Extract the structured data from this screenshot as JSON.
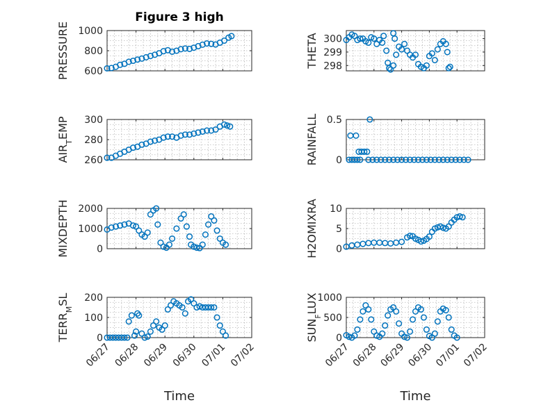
{
  "figure": {
    "title": "Figure 3 high",
    "xlabel": "Time",
    "x_tick_labels": [
      "06/27",
      "06/28",
      "06/29",
      "06/30",
      "07/01",
      "07/02"
    ],
    "series_color": "#0072BD"
  },
  "chart_data": [
    {
      "type": "scatter",
      "title": "Figure 3 high",
      "ylabel": "PRESSURE",
      "xlim": [
        0,
        5
      ],
      "ylim": [
        600,
        1000
      ],
      "yticks": [
        600,
        800,
        1000
      ],
      "grid": true,
      "legend": "none",
      "points_key": "pressure"
    },
    {
      "type": "scatter",
      "ylabel": "THETA",
      "xlim": [
        0,
        5
      ],
      "ylim": [
        297.6,
        300.6
      ],
      "yticks": [
        298,
        299,
        300
      ],
      "grid": true,
      "legend": "none",
      "points_key": "theta"
    },
    {
      "type": "scatter",
      "ylabel": "AIR_TEMP",
      "ylabel_display": {
        "main": "AIR",
        "sub": "T",
        "rest": "EMP"
      },
      "xlim": [
        0,
        5
      ],
      "ylim": [
        260,
        300
      ],
      "yticks": [
        260,
        280,
        300
      ],
      "grid": true,
      "legend": "none",
      "points_key": "air_temp"
    },
    {
      "type": "scatter",
      "ylabel": "RAINFALL",
      "xlim": [
        0,
        5
      ],
      "ylim": [
        0,
        0.5
      ],
      "yticks": [
        0,
        0.5
      ],
      "grid": true,
      "legend": "none",
      "points_key": "rainfall"
    },
    {
      "type": "scatter",
      "ylabel": "MIXDEPTH",
      "xlim": [
        0,
        5
      ],
      "ylim": [
        0,
        2000
      ],
      "yticks": [
        0,
        1000,
        2000
      ],
      "grid": true,
      "legend": "none",
      "points_key": "mixdepth"
    },
    {
      "type": "scatter",
      "ylabel": "H2OMIXRA",
      "xlim": [
        0,
        5
      ],
      "ylim": [
        0,
        10
      ],
      "yticks": [
        0,
        5,
        10
      ],
      "grid": true,
      "legend": "none",
      "points_key": "h2omixra"
    },
    {
      "type": "scatter",
      "ylabel": "TERR_MSL",
      "ylabel_display": {
        "main": "TERR",
        "sub": "M",
        "rest": "SL"
      },
      "xlim": [
        0,
        5
      ],
      "ylim": [
        0,
        200
      ],
      "yticks": [
        0,
        100,
        200
      ],
      "grid": true,
      "legend": "none",
      "points_key": "terr_msl"
    },
    {
      "type": "scatter",
      "ylabel": "SUN_FLUX",
      "ylabel_display": {
        "main": "SUN",
        "sub": "F",
        "rest": "LUX"
      },
      "xlim": [
        0,
        5
      ],
      "ylim": [
        0,
        1000
      ],
      "yticks": [
        0,
        500,
        1000
      ],
      "grid": true,
      "legend": "none",
      "points_key": "sun_flux"
    }
  ],
  "series_points": {
    "pressure": [
      [
        0.0,
        625
      ],
      [
        0.15,
        628
      ],
      [
        0.3,
        640
      ],
      [
        0.45,
        660
      ],
      [
        0.6,
        670
      ],
      [
        0.75,
        690
      ],
      [
        0.9,
        700
      ],
      [
        1.05,
        712
      ],
      [
        1.2,
        722
      ],
      [
        1.35,
        735
      ],
      [
        1.5,
        748
      ],
      [
        1.65,
        760
      ],
      [
        1.8,
        775
      ],
      [
        1.95,
        795
      ],
      [
        2.1,
        805
      ],
      [
        2.25,
        790
      ],
      [
        2.4,
        800
      ],
      [
        2.55,
        815
      ],
      [
        2.7,
        822
      ],
      [
        2.85,
        818
      ],
      [
        3.0,
        830
      ],
      [
        3.15,
        845
      ],
      [
        3.3,
        860
      ],
      [
        3.45,
        872
      ],
      [
        3.6,
        868
      ],
      [
        3.75,
        862
      ],
      [
        3.9,
        880
      ],
      [
        4.05,
        900
      ],
      [
        4.2,
        930
      ],
      [
        4.3,
        945
      ]
    ],
    "theta": [
      [
        0.0,
        299.9
      ],
      [
        0.1,
        300.1
      ],
      [
        0.2,
        300.3
      ],
      [
        0.3,
        300.2
      ],
      [
        0.4,
        299.9
      ],
      [
        0.5,
        300.0
      ],
      [
        0.6,
        300.0
      ],
      [
        0.7,
        299.8
      ],
      [
        0.8,
        299.7
      ],
      [
        0.9,
        300.1
      ],
      [
        1.0,
        300.0
      ],
      [
        1.1,
        299.6
      ],
      [
        1.2,
        299.9
      ],
      [
        1.3,
        299.7
      ],
      [
        1.35,
        300.2
      ],
      [
        1.45,
        299.1
      ],
      [
        1.5,
        298.2
      ],
      [
        1.55,
        297.8
      ],
      [
        1.6,
        297.7
      ],
      [
        1.7,
        298.0
      ],
      [
        1.8,
        298.8
      ],
      [
        1.9,
        299.4
      ],
      [
        2.0,
        299.2
      ],
      [
        2.1,
        299.6
      ],
      [
        2.2,
        299.1
      ],
      [
        2.3,
        298.8
      ],
      [
        2.4,
        298.6
      ],
      [
        2.5,
        298.8
      ],
      [
        2.6,
        298.1
      ],
      [
        2.7,
        297.9
      ],
      [
        2.8,
        297.8
      ],
      [
        2.9,
        298.0
      ],
      [
        3.0,
        298.7
      ],
      [
        3.1,
        298.9
      ],
      [
        3.2,
        298.4
      ],
      [
        3.3,
        299.2
      ],
      [
        3.4,
        299.6
      ],
      [
        3.5,
        299.8
      ],
      [
        3.6,
        299.6
      ],
      [
        3.65,
        299.0
      ],
      [
        3.7,
        297.8
      ],
      [
        3.75,
        297.9
      ],
      [
        1.7,
        300.4
      ],
      [
        1.75,
        300.0
      ]
    ],
    "air_temp": [
      [
        0.0,
        262
      ],
      [
        0.15,
        262
      ],
      [
        0.3,
        264
      ],
      [
        0.45,
        266
      ],
      [
        0.6,
        268
      ],
      [
        0.75,
        270
      ],
      [
        0.9,
        272
      ],
      [
        1.05,
        273
      ],
      [
        1.2,
        275
      ],
      [
        1.35,
        276
      ],
      [
        1.5,
        278
      ],
      [
        1.65,
        279
      ],
      [
        1.8,
        280
      ],
      [
        1.95,
        282
      ],
      [
        2.1,
        283
      ],
      [
        2.25,
        283
      ],
      [
        2.4,
        282
      ],
      [
        2.55,
        284
      ],
      [
        2.7,
        285
      ],
      [
        2.85,
        285
      ],
      [
        3.0,
        286
      ],
      [
        3.15,
        287
      ],
      [
        3.3,
        288
      ],
      [
        3.45,
        289
      ],
      [
        3.6,
        289
      ],
      [
        3.75,
        290
      ],
      [
        3.9,
        293
      ],
      [
        4.05,
        295
      ],
      [
        4.15,
        294
      ],
      [
        4.25,
        293
      ]
    ],
    "rainfall": [
      [
        0.1,
        0
      ],
      [
        0.2,
        0
      ],
      [
        0.3,
        0
      ],
      [
        0.4,
        0
      ],
      [
        0.5,
        0
      ],
      [
        0.15,
        0.3
      ],
      [
        0.35,
        0.3
      ],
      [
        0.45,
        0.1
      ],
      [
        0.55,
        0.1
      ],
      [
        0.65,
        0.1
      ],
      [
        0.75,
        0.1
      ],
      [
        0.8,
        0
      ],
      [
        0.85,
        0.5
      ],
      [
        0.95,
        0
      ],
      [
        1.1,
        0
      ],
      [
        1.25,
        0
      ],
      [
        1.4,
        0
      ],
      [
        1.55,
        0
      ],
      [
        1.7,
        0
      ],
      [
        1.85,
        0
      ],
      [
        2.0,
        0
      ],
      [
        2.15,
        0
      ],
      [
        2.3,
        0
      ],
      [
        2.45,
        0
      ],
      [
        2.6,
        0
      ],
      [
        2.75,
        0
      ],
      [
        2.9,
        0
      ],
      [
        3.05,
        0
      ],
      [
        3.2,
        0
      ],
      [
        3.35,
        0
      ],
      [
        3.5,
        0
      ],
      [
        3.65,
        0
      ],
      [
        3.8,
        0
      ],
      [
        3.95,
        0
      ],
      [
        4.1,
        0
      ],
      [
        4.25,
        0
      ],
      [
        4.4,
        0
      ]
    ],
    "mixdepth": [
      [
        0.0,
        950
      ],
      [
        0.15,
        1050
      ],
      [
        0.3,
        1100
      ],
      [
        0.45,
        1150
      ],
      [
        0.6,
        1200
      ],
      [
        0.75,
        1250
      ],
      [
        0.9,
        1150
      ],
      [
        1.0,
        1100
      ],
      [
        1.1,
        900
      ],
      [
        1.2,
        700
      ],
      [
        1.3,
        600
      ],
      [
        1.4,
        800
      ],
      [
        1.5,
        1700
      ],
      [
        1.6,
        1900
      ],
      [
        1.7,
        2000
      ],
      [
        1.75,
        1200
      ],
      [
        1.85,
        300
      ],
      [
        1.95,
        100
      ],
      [
        2.05,
        50
      ],
      [
        2.15,
        200
      ],
      [
        2.25,
        500
      ],
      [
        2.4,
        1000
      ],
      [
        2.55,
        1500
      ],
      [
        2.65,
        1700
      ],
      [
        2.75,
        1100
      ],
      [
        2.85,
        600
      ],
      [
        2.9,
        200
      ],
      [
        3.0,
        100
      ],
      [
        3.1,
        50
      ],
      [
        3.2,
        30
      ],
      [
        3.3,
        200
      ],
      [
        3.4,
        700
      ],
      [
        3.5,
        1200
      ],
      [
        3.6,
        1600
      ],
      [
        3.7,
        1400
      ],
      [
        3.8,
        900
      ],
      [
        3.9,
        500
      ],
      [
        4.0,
        300
      ],
      [
        4.1,
        200
      ]
    ],
    "h2omixra": [
      [
        0.0,
        0.5
      ],
      [
        0.2,
        0.8
      ],
      [
        0.4,
        1.0
      ],
      [
        0.6,
        1.2
      ],
      [
        0.8,
        1.4
      ],
      [
        1.0,
        1.5
      ],
      [
        1.2,
        1.5
      ],
      [
        1.4,
        1.4
      ],
      [
        1.6,
        1.3
      ],
      [
        1.8,
        1.5
      ],
      [
        2.0,
        1.7
      ],
      [
        2.2,
        2.8
      ],
      [
        2.3,
        3.2
      ],
      [
        2.4,
        3.1
      ],
      [
        2.5,
        2.5
      ],
      [
        2.6,
        2.2
      ],
      [
        2.7,
        1.8
      ],
      [
        2.8,
        2.0
      ],
      [
        2.9,
        2.4
      ],
      [
        3.0,
        3.0
      ],
      [
        3.1,
        4.2
      ],
      [
        3.2,
        5.0
      ],
      [
        3.3,
        5.3
      ],
      [
        3.4,
        5.5
      ],
      [
        3.5,
        5.2
      ],
      [
        3.6,
        5.0
      ],
      [
        3.7,
        5.5
      ],
      [
        3.8,
        6.5
      ],
      [
        3.9,
        7.2
      ],
      [
        4.0,
        7.8
      ],
      [
        4.1,
        8.0
      ],
      [
        4.2,
        7.8
      ]
    ],
    "terr_msl": [
      [
        0.0,
        0
      ],
      [
        0.1,
        0
      ],
      [
        0.2,
        0
      ],
      [
        0.3,
        0
      ],
      [
        0.4,
        0
      ],
      [
        0.5,
        0
      ],
      [
        0.6,
        0
      ],
      [
        0.7,
        0
      ],
      [
        0.75,
        80
      ],
      [
        0.85,
        110
      ],
      [
        0.95,
        10
      ],
      [
        1.0,
        30
      ],
      [
        1.05,
        120
      ],
      [
        1.1,
        110
      ],
      [
        1.2,
        20
      ],
      [
        1.3,
        0
      ],
      [
        1.4,
        5
      ],
      [
        1.5,
        30
      ],
      [
        1.6,
        60
      ],
      [
        1.7,
        80
      ],
      [
        1.8,
        50
      ],
      [
        1.9,
        40
      ],
      [
        2.0,
        60
      ],
      [
        2.1,
        140
      ],
      [
        2.2,
        160
      ],
      [
        2.3,
        180
      ],
      [
        2.4,
        170
      ],
      [
        2.5,
        160
      ],
      [
        2.6,
        150
      ],
      [
        2.7,
        120
      ],
      [
        2.8,
        180
      ],
      [
        2.9,
        190
      ],
      [
        3.0,
        170
      ],
      [
        3.1,
        150
      ],
      [
        3.2,
        155
      ],
      [
        3.3,
        150
      ],
      [
        3.4,
        150
      ],
      [
        3.5,
        150
      ],
      [
        3.6,
        150
      ],
      [
        3.7,
        150
      ],
      [
        3.8,
        100
      ],
      [
        3.9,
        60
      ],
      [
        4.0,
        30
      ],
      [
        4.1,
        10
      ]
    ],
    "sun_flux": [
      [
        0.0,
        60
      ],
      [
        0.1,
        20
      ],
      [
        0.2,
        0
      ],
      [
        0.3,
        50
      ],
      [
        0.4,
        200
      ],
      [
        0.5,
        450
      ],
      [
        0.6,
        650
      ],
      [
        0.7,
        800
      ],
      [
        0.8,
        700
      ],
      [
        0.9,
        450
      ],
      [
        1.0,
        150
      ],
      [
        1.1,
        50
      ],
      [
        1.2,
        20
      ],
      [
        1.3,
        100
      ],
      [
        1.4,
        300
      ],
      [
        1.5,
        550
      ],
      [
        1.6,
        700
      ],
      [
        1.7,
        750
      ],
      [
        1.8,
        650
      ],
      [
        1.9,
        350
      ],
      [
        2.0,
        100
      ],
      [
        2.1,
        20
      ],
      [
        2.2,
        0
      ],
      [
        2.3,
        150
      ],
      [
        2.4,
        450
      ],
      [
        2.5,
        650
      ],
      [
        2.6,
        750
      ],
      [
        2.7,
        700
      ],
      [
        2.8,
        500
      ],
      [
        2.9,
        200
      ],
      [
        3.0,
        40
      ],
      [
        3.1,
        0
      ],
      [
        3.2,
        100
      ],
      [
        3.3,
        400
      ],
      [
        3.4,
        650
      ],
      [
        3.5,
        720
      ],
      [
        3.6,
        680
      ],
      [
        3.7,
        500
      ],
      [
        3.8,
        200
      ],
      [
        3.9,
        50
      ],
      [
        4.0,
        0
      ]
    ]
  }
}
